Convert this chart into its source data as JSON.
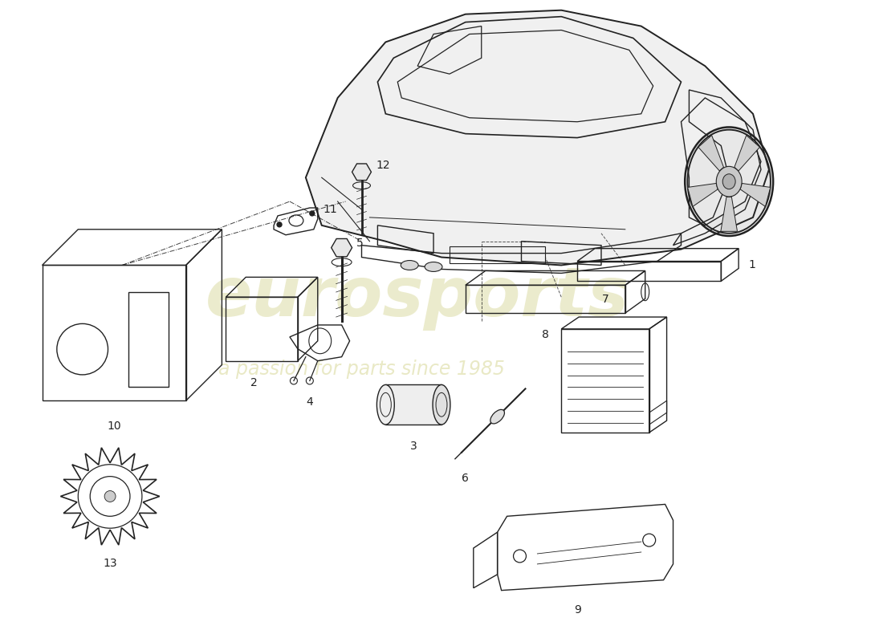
{
  "background_color": "#ffffff",
  "line_color": "#222222",
  "watermark_color1": "#c8c870",
  "watermark_color2": "#c8c870",
  "watermark1": "eurosports",
  "watermark2": "a passion for parts since 1985",
  "figsize": [
    11.0,
    8.0
  ],
  "dpi": 100
}
